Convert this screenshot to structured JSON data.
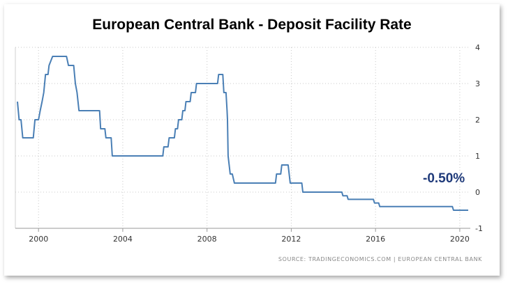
{
  "chart_data": {
    "type": "line",
    "title": "European Central Bank - Deposit Facility Rate",
    "xlabel": "",
    "ylabel": "",
    "xlim": [
      1998.9,
      2020.5
    ],
    "ylim": [
      -1,
      4
    ],
    "x_ticks": [
      2000,
      2004,
      2008,
      2012,
      2016,
      2020
    ],
    "x_tick_labels": [
      "2000",
      "2004",
      "2008",
      "2012",
      "2016",
      "2020"
    ],
    "y_ticks": [
      4,
      3,
      2,
      1,
      0,
      -1
    ],
    "y_tick_labels": [
      "4",
      "3",
      "2",
      "1",
      "0",
      "-1"
    ],
    "y_axis_side": "right",
    "grid": true,
    "legend": "none",
    "line_color": "#4a7fb5",
    "callout_color": "#1f3a7a",
    "callout": "-0.50%",
    "source": "SOURCE: TRADINGECONOMICS.COM  |  EUROPEAN CENTRAL BANK",
    "series": [
      {
        "points": [
          [
            1999.0,
            2.5
          ],
          [
            1999.08,
            2.0
          ],
          [
            1999.17,
            2.0
          ],
          [
            1999.25,
            1.5
          ],
          [
            1999.75,
            1.5
          ],
          [
            1999.83,
            2.0
          ],
          [
            2000.0,
            2.0
          ],
          [
            2000.08,
            2.25
          ],
          [
            2000.17,
            2.5
          ],
          [
            2000.25,
            2.75
          ],
          [
            2000.33,
            3.25
          ],
          [
            2000.45,
            3.25
          ],
          [
            2000.5,
            3.5
          ],
          [
            2000.67,
            3.75
          ],
          [
            2001.33,
            3.75
          ],
          [
            2001.42,
            3.5
          ],
          [
            2001.67,
            3.5
          ],
          [
            2001.75,
            3.0
          ],
          [
            2001.83,
            2.75
          ],
          [
            2001.92,
            2.25
          ],
          [
            2002.9,
            2.25
          ],
          [
            2002.95,
            1.75
          ],
          [
            2003.15,
            1.75
          ],
          [
            2003.2,
            1.5
          ],
          [
            2003.45,
            1.5
          ],
          [
            2003.5,
            1.0
          ],
          [
            2005.9,
            1.0
          ],
          [
            2005.95,
            1.25
          ],
          [
            2006.15,
            1.25
          ],
          [
            2006.2,
            1.5
          ],
          [
            2006.45,
            1.5
          ],
          [
            2006.5,
            1.75
          ],
          [
            2006.6,
            1.75
          ],
          [
            2006.65,
            2.0
          ],
          [
            2006.8,
            2.0
          ],
          [
            2006.85,
            2.25
          ],
          [
            2006.95,
            2.25
          ],
          [
            2007.0,
            2.5
          ],
          [
            2007.2,
            2.5
          ],
          [
            2007.25,
            2.75
          ],
          [
            2007.45,
            2.75
          ],
          [
            2007.5,
            3.0
          ],
          [
            2008.5,
            3.0
          ],
          [
            2008.55,
            3.25
          ],
          [
            2008.75,
            3.25
          ],
          [
            2008.8,
            2.75
          ],
          [
            2008.9,
            2.75
          ],
          [
            2008.95,
            2.25
          ],
          [
            2008.97,
            2.0
          ],
          [
            2009.0,
            1.0
          ],
          [
            2009.1,
            0.5
          ],
          [
            2009.2,
            0.5
          ],
          [
            2009.3,
            0.25
          ],
          [
            2011.25,
            0.25
          ],
          [
            2011.3,
            0.5
          ],
          [
            2011.5,
            0.5
          ],
          [
            2011.55,
            0.75
          ],
          [
            2011.85,
            0.75
          ],
          [
            2011.9,
            0.5
          ],
          [
            2011.95,
            0.25
          ],
          [
            2012.5,
            0.25
          ],
          [
            2012.55,
            0.0
          ],
          [
            2014.4,
            0.0
          ],
          [
            2014.45,
            -0.1
          ],
          [
            2014.65,
            -0.1
          ],
          [
            2014.7,
            -0.2
          ],
          [
            2015.9,
            -0.2
          ],
          [
            2015.95,
            -0.3
          ],
          [
            2016.15,
            -0.3
          ],
          [
            2016.2,
            -0.4
          ],
          [
            2019.65,
            -0.4
          ],
          [
            2019.7,
            -0.5
          ],
          [
            2020.4,
            -0.5
          ]
        ]
      }
    ]
  }
}
